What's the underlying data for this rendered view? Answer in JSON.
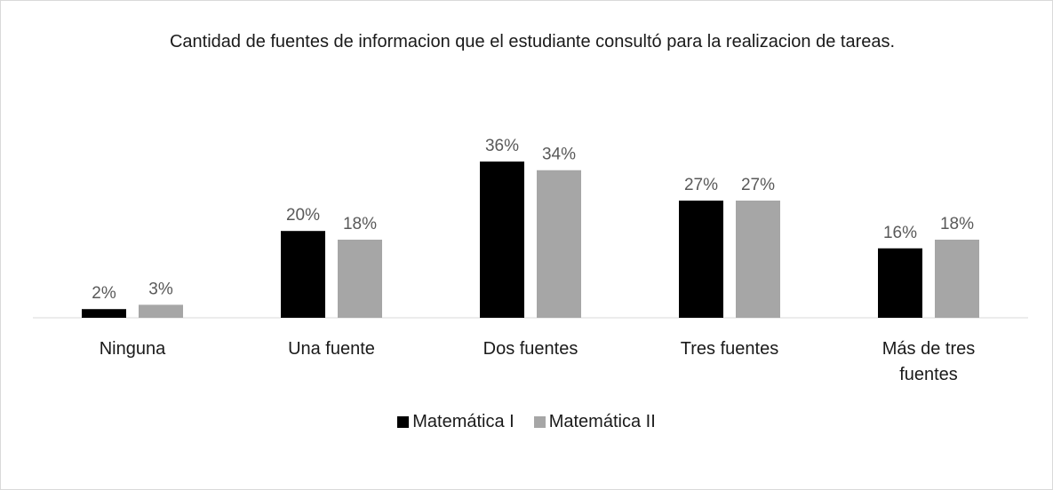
{
  "chart_data": {
    "type": "bar",
    "title": "Cantidad de fuentes de informacion que el estudiante consultó para la realizacion de tareas.",
    "categories": [
      "Ninguna",
      "Una fuente",
      "Dos fuentes",
      "Tres fuentes",
      "Más de tres fuentes"
    ],
    "series": [
      {
        "name": "Matemática I",
        "color": "#000000",
        "values": [
          2,
          20,
          36,
          27,
          16
        ],
        "value_labels": [
          "2%",
          "20%",
          "36%",
          "27%",
          "16%"
        ]
      },
      {
        "name": "Matemática II",
        "color": "#a6a6a6",
        "values": [
          3,
          18,
          34,
          27,
          18
        ],
        "value_labels": [
          "3%",
          "18%",
          "34%",
          "27%",
          "18%"
        ]
      }
    ],
    "legend": "bottom"
  }
}
